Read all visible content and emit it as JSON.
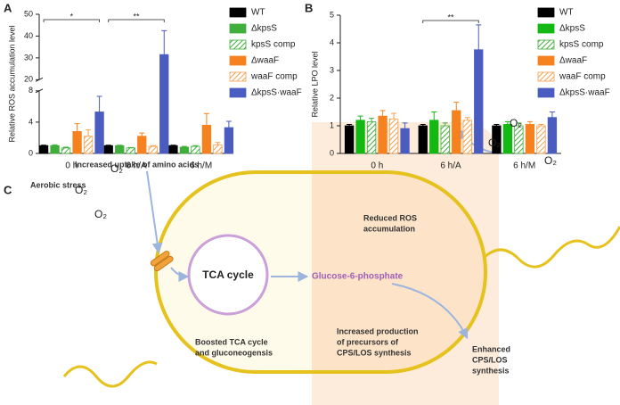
{
  "chart_data": [
    {
      "type": "bar",
      "panel_label": "A",
      "ylabel": "Relative ROS accumulation level",
      "categories": [
        "0 h",
        "6 h/A",
        "6 h/M"
      ],
      "ylim": [
        0,
        50
      ],
      "ybreak": [
        8,
        20
      ],
      "yticks": [
        0,
        4,
        8,
        20,
        30,
        40,
        50
      ],
      "series": [
        {
          "name": "WT",
          "color": "#000000",
          "hatch": false,
          "values": [
            1.0,
            1.0,
            1.0
          ],
          "errors": [
            0.05,
            0.05,
            0.05
          ]
        },
        {
          "name": "ΔkpsS",
          "color": "#3fae3a",
          "hatch": false,
          "values": [
            1.0,
            1.0,
            0.8
          ],
          "errors": [
            0.1,
            0.05,
            0.1
          ]
        },
        {
          "name": "kpsS comp",
          "color": "#3fae3a",
          "hatch": true,
          "values": [
            0.7,
            0.7,
            0.9
          ],
          "errors": [
            0.1,
            0.05,
            0.1
          ]
        },
        {
          "name": "ΔwaaF",
          "color": "#f5821f",
          "hatch": false,
          "values": [
            2.8,
            2.2,
            3.6
          ],
          "errors": [
            1.0,
            0.4,
            1.5
          ]
        },
        {
          "name": "waaF comp",
          "color": "#f5a04d",
          "hatch": true,
          "values": [
            2.2,
            0.9,
            1.1
          ],
          "errors": [
            0.8,
            0.1,
            0.3
          ]
        },
        {
          "name": "ΔkpsS·waaF",
          "color": "#4a5cbf",
          "hatch": false,
          "values": [
            5.3,
            31.5,
            3.3
          ],
          "errors": [
            2.0,
            11.0,
            0.8
          ]
        }
      ],
      "annotations": [
        {
          "label": "*",
          "category": 0
        },
        {
          "label": "**",
          "category": 1
        }
      ]
    },
    {
      "type": "bar",
      "panel_label": "B",
      "ylabel": "Relative LPO level",
      "categories": [
        "0 h",
        "6 h/A",
        "6 h/M"
      ],
      "ylim": [
        0,
        5
      ],
      "yticks": [
        0,
        1,
        2,
        3,
        4,
        5
      ],
      "series": [
        {
          "name": "WT",
          "color": "#000000",
          "hatch": false,
          "values": [
            1.0,
            1.0,
            1.0
          ],
          "errors": [
            0.05,
            0.05,
            0.05
          ]
        },
        {
          "name": "ΔkpsS",
          "color": "#13b813",
          "hatch": false,
          "values": [
            1.2,
            1.2,
            1.05
          ],
          "errors": [
            0.15,
            0.3,
            0.1
          ]
        },
        {
          "name": "kpsS comp",
          "color": "#3fae3a",
          "hatch": true,
          "values": [
            1.15,
            1.0,
            1.0
          ],
          "errors": [
            0.12,
            0.1,
            0.1
          ]
        },
        {
          "name": "ΔwaaF",
          "color": "#f5821f",
          "hatch": false,
          "values": [
            1.35,
            1.55,
            1.05
          ],
          "errors": [
            0.2,
            0.3,
            0.1
          ]
        },
        {
          "name": "waaF comp",
          "color": "#f5a04d",
          "hatch": true,
          "values": [
            1.25,
            1.2,
            1.0
          ],
          "errors": [
            0.2,
            0.1,
            0.05
          ]
        },
        {
          "name": "ΔkpsS·waaF",
          "color": "#4a5cbf",
          "hatch": false,
          "values": [
            0.9,
            3.75,
            1.3
          ],
          "errors": [
            0.2,
            0.9,
            0.2
          ]
        }
      ],
      "annotations": [
        {
          "label": "**",
          "category": 1
        }
      ]
    }
  ],
  "diagram": {
    "panel_label": "C",
    "uptake": "Increased uptake of amino acids",
    "stress": "Aerobic stress",
    "oxygen": [
      "O₂",
      "O₂",
      "O₂",
      "O₂",
      "O₂",
      "O₂"
    ],
    "tca": "TCA cycle",
    "glucose": "Glucose-6-phosphate",
    "ros": [
      "Reduced ROS",
      "accumulation"
    ],
    "boosted": [
      "Boosted TCA cycle",
      "and gluconeogensis"
    ],
    "precursors": [
      "Increased production",
      "of precursors of",
      "CPS/LOS synthesis"
    ],
    "enhanced": [
      "Enhanced",
      "CPS/LOS",
      "synthesis"
    ]
  }
}
